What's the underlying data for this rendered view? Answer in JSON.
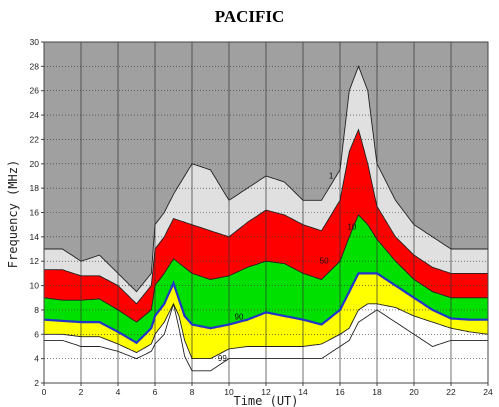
{
  "chart_data": {
    "type": "area",
    "title": "PACIFIC",
    "xlabel": "Time (UT)",
    "ylabel": "Frequency (MHz)",
    "xlim": [
      0,
      24
    ],
    "ylim": [
      2,
      30
    ],
    "x_ticks": [
      "0",
      "2",
      "4",
      "6",
      "8",
      "10",
      "12",
      "14",
      "16",
      "18",
      "20",
      "22",
      "24"
    ],
    "y_ticks": [
      "2",
      "4",
      "6",
      "8",
      "10",
      "12",
      "14",
      "16",
      "18",
      "20",
      "22",
      "24",
      "26",
      "28",
      "30"
    ],
    "grid": true,
    "colors": {
      "background": "#a0a0a0",
      "top_band": "#e0e0e0",
      "upper_band": "#ff0000",
      "middle_band": "#00e000",
      "lower_band": "#ffff00",
      "bottom_band": "#ffffff",
      "median_line": "#2233cc",
      "grid": "#333333"
    },
    "curve_labels": [
      "1",
      "10",
      "50",
      "90",
      "99"
    ],
    "series": [
      {
        "x": [
          0,
          1,
          2,
          3,
          4,
          5,
          5.8,
          6,
          6.5,
          7,
          8,
          9,
          10,
          11,
          12,
          13,
          14,
          15,
          16,
          16.5,
          17,
          17.5,
          18,
          19,
          20,
          21,
          22,
          23,
          24
        ],
        "values": [
          13,
          13,
          12,
          12.5,
          11,
          9.5,
          11,
          15,
          16,
          17.5,
          20,
          19.5,
          17,
          18,
          19,
          18.5,
          17,
          17,
          19.5,
          26,
          28,
          26,
          20,
          17,
          15,
          14,
          13,
          13,
          13
        ]
      },
      {
        "x": [
          0,
          1,
          2,
          3,
          4,
          5,
          5.8,
          6,
          6.5,
          7,
          8,
          9,
          10,
          11,
          12,
          13,
          14,
          15,
          16,
          16.5,
          17,
          17.5,
          18,
          19,
          20,
          21,
          22,
          23,
          24
        ],
        "values": [
          11.3,
          11.3,
          10.8,
          10.8,
          10,
          8.5,
          10,
          13,
          14,
          15.5,
          15,
          14.5,
          14,
          15.2,
          16.2,
          15.8,
          15,
          14.5,
          17,
          21,
          22.8,
          20,
          16.5,
          14,
          12.5,
          11.5,
          11,
          11,
          11
        ]
      },
      {
        "x": [
          0,
          1,
          2,
          3,
          4,
          5,
          5.8,
          6,
          6.5,
          7,
          8,
          9,
          10,
          11,
          12,
          13,
          14,
          15,
          16,
          16.5,
          17,
          17.5,
          18,
          19,
          20,
          21,
          22,
          23,
          24
        ],
        "values": [
          9,
          8.8,
          8.8,
          8.9,
          8,
          7,
          8,
          10,
          11,
          12.2,
          11,
          10.5,
          10.8,
          11.5,
          12,
          11.8,
          11,
          10.5,
          12,
          14,
          15.8,
          15,
          13.8,
          12,
          10.5,
          9.5,
          9,
          9,
          9
        ]
      },
      {
        "x": [
          0,
          1,
          2,
          3,
          4,
          5,
          5.8,
          6,
          6.5,
          7,
          7.6,
          8,
          9,
          10,
          11,
          12,
          13,
          14,
          15,
          16,
          16.5,
          17,
          17.5,
          18,
          19,
          20,
          21,
          22,
          23,
          24
        ],
        "values": [
          7.2,
          7.1,
          7,
          7,
          6.2,
          5.3,
          6.5,
          7.5,
          8.5,
          10.2,
          7.5,
          6.8,
          6.5,
          6.8,
          7.2,
          7.8,
          7.5,
          7.2,
          6.8,
          8,
          9.5,
          11,
          11,
          11,
          10,
          9,
          8,
          7.3,
          7.2,
          7.2
        ]
      },
      {
        "x": [
          0,
          1,
          2,
          3,
          4,
          5,
          5.8,
          6,
          6.5,
          7,
          7.3,
          7.6,
          8,
          9,
          10,
          11,
          12,
          13,
          14,
          15,
          16,
          16.5,
          17,
          17.5,
          18,
          19,
          20,
          21,
          22,
          23,
          24
        ],
        "values": [
          6,
          6,
          5.8,
          5.8,
          5.2,
          4.5,
          5.2,
          6,
          7,
          8.5,
          7.5,
          5.5,
          4,
          4,
          4.8,
          5,
          5,
          5,
          5,
          5.2,
          6,
          6.5,
          8,
          8.5,
          8.5,
          8.2,
          7.5,
          7,
          6.5,
          6.2,
          6
        ]
      },
      {
        "x": [
          0,
          1,
          2,
          3,
          4,
          5,
          5.8,
          6,
          6.5,
          7,
          7.3,
          7.6,
          8,
          9,
          10,
          11,
          12,
          13,
          14,
          15,
          16,
          16.5,
          17,
          17.5,
          18,
          19,
          20,
          21,
          22,
          23,
          24
        ],
        "values": [
          5.5,
          5.5,
          5,
          5,
          4.6,
          4,
          4.6,
          5.2,
          6,
          8.5,
          6.5,
          4.2,
          3,
          3,
          4,
          4,
          4,
          4,
          4,
          4,
          5,
          5.5,
          7,
          7.5,
          8,
          7,
          6,
          5,
          5.5,
          5.5,
          5.5
        ]
      }
    ]
  }
}
